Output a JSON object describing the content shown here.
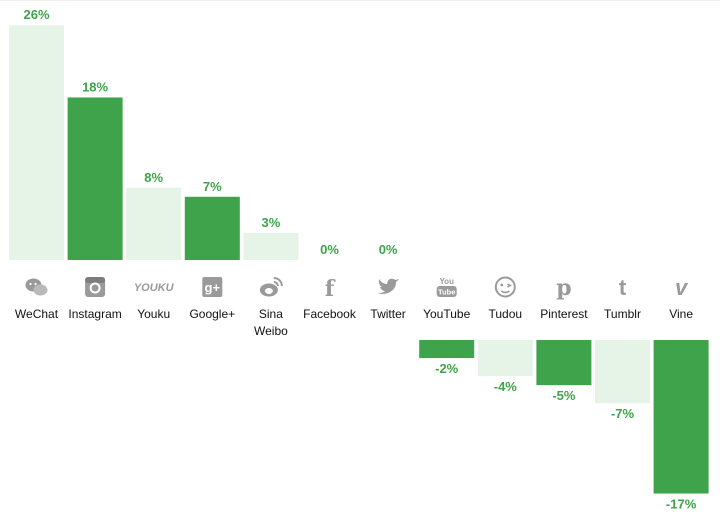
{
  "chart_data": {
    "type": "bar",
    "unit": "%",
    "categories": [
      "WeChat",
      "Instagram",
      "Youku",
      "Google+",
      "Sina Weibo",
      "Facebook",
      "Twitter",
      "YouTube",
      "Tudou",
      "Pinterest",
      "Tumblr",
      "Vine"
    ],
    "values": [
      26,
      18,
      8,
      7,
      3,
      0,
      0,
      -2,
      -4,
      -5,
      -7,
      -17
    ],
    "value_labels": [
      "26%",
      "18%",
      "8%",
      "7%",
      "3%",
      "0%",
      "0%",
      "-2%",
      "-4%",
      "-5%",
      "-7%",
      "-17%"
    ],
    "icons": [
      "wechat-icon",
      "instagram-icon",
      "youku-icon",
      "google-plus-icon",
      "sina-weibo-icon",
      "facebook-icon",
      "twitter-icon",
      "youtube-icon",
      "tudou-icon",
      "pinterest-icon",
      "tumblr-icon",
      "vine-icon"
    ],
    "title": "",
    "xlabel": "",
    "ylabel": "",
    "grid": false,
    "legend": "none",
    "colors": {
      "bar_dark": "#3ea34a",
      "bar_light": "#e5f4e6",
      "label": "#3ea34a",
      "icon": "#9a9a9a",
      "text": "#111111"
    }
  }
}
